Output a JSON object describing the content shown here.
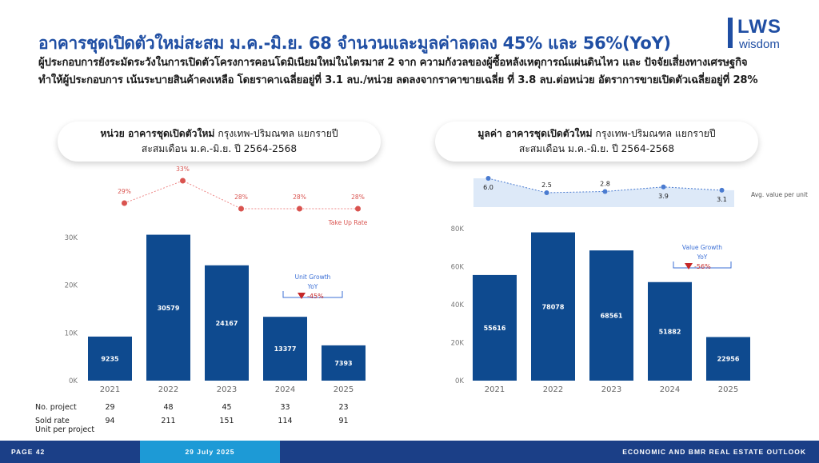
{
  "header": {
    "title": "อาคารชุดเปิดตัวใหม่สะสม ม.ค.-มิ.ย. 68 จำนวนและมูลค่าลดลง 45% และ 56%(YoY)",
    "description": "ผู้ประกอบการยังระมัดระวังในการเปิดตัวโครงการคอนโดมิเนียมใหม่ในไตรมาส 2 จาก ความกังวลของผู้ซื้อหลังเหตุการณ์แผ่นดินไหว และ ปัจจัยเสี่ยงทางเศรษฐกิจ ทำให้ผู้ประกอบการ เน้นระบายสินค้าคงเหลือ โดยราคาเฉลี่ยอยู่ที่ 3.1 ลบ./หน่วย ลดลงจากราคาขายเฉลี่ย ที่ 3.8 ลบ.ต่อหน่วย อัตราการขายเปิดตัวเฉลี่ยอยู่ที่ 28%"
  },
  "logo": {
    "brand": "LWS",
    "sub": "wisdom"
  },
  "left_panel": {
    "pill_bold": "หน่วย อาคารชุดเปิดตัวใหม่",
    "pill_rest": " กรุงเทพ-ปริมณฑล แยกรายปี",
    "pill_line2": "สะสมเดือน ม.ค.-มิ.ย. ปี 2564-2568",
    "row_labels": {
      "projects": "No. project",
      "sold": "Sold rate",
      "upp": "Unit per project"
    },
    "projects": [
      "29",
      "48",
      "45",
      "33",
      "23"
    ],
    "unit_per_project": [
      "94",
      "211",
      "151",
      "114",
      "91"
    ]
  },
  "right_panel": {
    "pill_bold": "มูลค่า อาคารชุดเปิดตัวใหม่",
    "pill_rest": " กรุงเทพ-ปริมณฑล แยกรายปี",
    "pill_line2": "สะสมเดือน ม.ค.-มิ.ย. ปี 2564-2568"
  },
  "footer": {
    "page": "PAGE 42",
    "date": "29 July 2025",
    "section": "ECONOMIC AND BMR REAL ESTATE OUTLOOK"
  },
  "colors": {
    "bar": "#0e4a8f",
    "accent": "#d9534f",
    "title": "#1f4ea3",
    "area": "#dde9f8",
    "line": "#4a7bd0"
  },
  "chart_data": [
    {
      "type": "bar",
      "categories": [
        "2021",
        "2022",
        "2023",
        "2024",
        "2025"
      ],
      "values": [
        9235,
        30579,
        24167,
        13377,
        7393
      ],
      "ylim": [
        0,
        30000
      ],
      "yticks": [
        0,
        10000,
        20000,
        30000
      ],
      "ytick_labels": [
        "0K",
        "10K",
        "20K",
        "30K"
      ],
      "annotation": {
        "title": "Unit Growth",
        "sub": "YoY",
        "value": "-45%"
      },
      "overlay": {
        "type": "line",
        "name": "Take Up Rate",
        "values": [
          29,
          33,
          28,
          28,
          28
        ],
        "labels": [
          "29%",
          "33%",
          "28%",
          "28%",
          "28%"
        ]
      }
    },
    {
      "type": "bar",
      "categories": [
        "2021",
        "2022",
        "2023",
        "2024",
        "2025"
      ],
      "values": [
        55616,
        78078,
        68561,
        51882,
        22956
      ],
      "ylim": [
        0,
        80000
      ],
      "yticks": [
        0,
        20000,
        40000,
        60000,
        80000
      ],
      "ytick_labels": [
        "0K",
        "20K",
        "40K",
        "60K",
        "80K"
      ],
      "annotation": {
        "title": "Value Growth",
        "sub": "YoY",
        "value": "-56%"
      },
      "overlay": {
        "type": "area",
        "name": "Avg. value per unit",
        "values": [
          6.0,
          2.5,
          2.8,
          3.9,
          3.1
        ],
        "labels": [
          "6.0",
          "2.5",
          "2.8",
          "3.9",
          "3.1"
        ]
      }
    }
  ]
}
